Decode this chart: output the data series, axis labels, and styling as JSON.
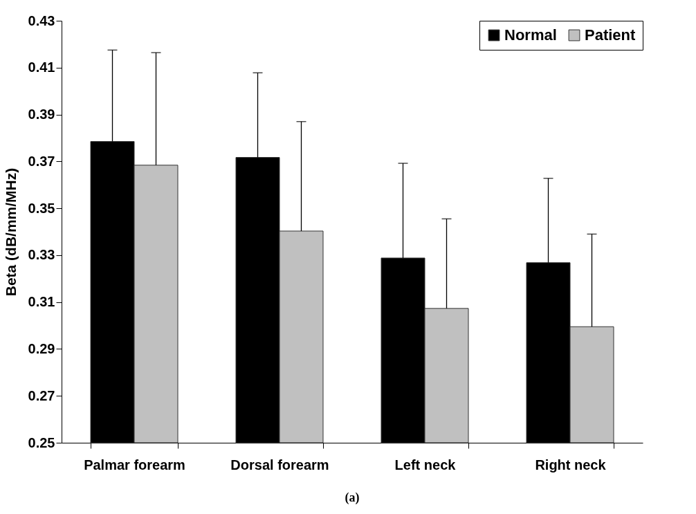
{
  "chart_data": {
    "type": "bar",
    "ylabel": "Beta (dB/mm/MHz)",
    "categories": [
      "Palmar forearm",
      "Dorsal forearm",
      "Left neck",
      "Right neck"
    ],
    "series": [
      {
        "name": "Normal",
        "color": "#000000",
        "values": [
          0.3785,
          0.3717,
          0.3288,
          0.3268
        ],
        "errors": [
          [
            0.3785,
            0.4175
          ],
          [
            0.3717,
            0.4078
          ],
          [
            0.3288,
            0.3692
          ],
          [
            0.3268,
            0.3628
          ]
        ]
      },
      {
        "name": "Patient",
        "color": "#c0c0c0",
        "values": [
          0.3684,
          0.3403,
          0.3073,
          0.2995
        ],
        "errors": [
          [
            0.3684,
            0.4164
          ],
          [
            0.3403,
            0.387
          ],
          [
            0.3073,
            0.3455
          ],
          [
            0.2995,
            0.339
          ]
        ]
      }
    ],
    "ylim": [
      0.25,
      0.43
    ],
    "yticks": [
      0.25,
      0.27,
      0.29,
      0.31,
      0.33,
      0.35,
      0.37,
      0.39,
      0.41,
      0.43
    ],
    "grid": false,
    "legend": "top right",
    "annotations": [
      "(a)"
    ]
  }
}
